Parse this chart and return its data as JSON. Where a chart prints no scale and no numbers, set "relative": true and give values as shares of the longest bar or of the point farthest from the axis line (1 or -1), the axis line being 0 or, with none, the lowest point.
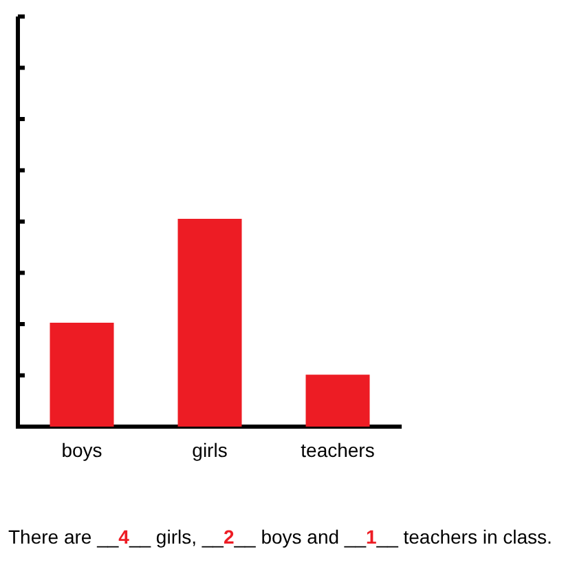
{
  "chart_data": {
    "type": "bar",
    "relative": true,
    "categories": [
      "boys",
      "girls",
      "teachers"
    ],
    "values": [
      0.5,
      1,
      0.25
    ],
    "color": "#ed1c24",
    "annotations": [
      "There are __4__ girls, __2__ boys and __1__ teachers in class."
    ]
  }
}
